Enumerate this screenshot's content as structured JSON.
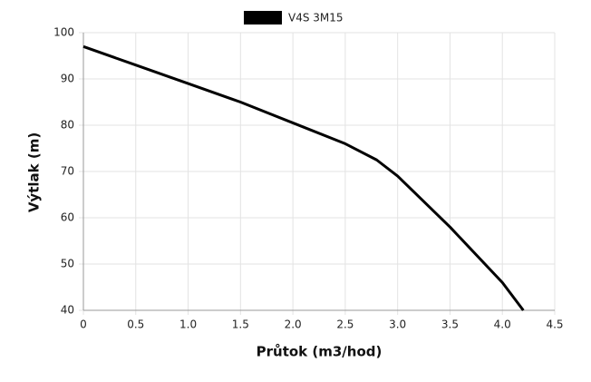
{
  "chart_data": {
    "type": "line",
    "x_label": "Průtok (m3/hod)",
    "y_label": "Výtlak (m)",
    "x": [
      0,
      0.5,
      1,
      1.5,
      2,
      2.5,
      2.8,
      3,
      3.5,
      4,
      4.2
    ],
    "series": [
      {
        "name": "V4S 3M15",
        "color": "#000000",
        "values": [
          97,
          93,
          89,
          85,
          80.5,
          76,
          72.5,
          69,
          58,
          46,
          40
        ]
      }
    ],
    "xlim": [
      0,
      4.5
    ],
    "xticks": [
      0,
      0.5,
      {
        "value": 1,
        "label": "1.0"
      },
      1.5,
      {
        "value": 2,
        "label": "2.0"
      },
      2.5,
      {
        "value": 3,
        "label": "3.0"
      },
      3.5,
      {
        "value": 4,
        "label": "4.0"
      },
      4.5
    ],
    "ylim": [
      40,
      100
    ],
    "yticks": [
      40,
      50,
      60,
      70,
      80,
      90,
      100
    ],
    "grid": true,
    "legend": "top"
  }
}
